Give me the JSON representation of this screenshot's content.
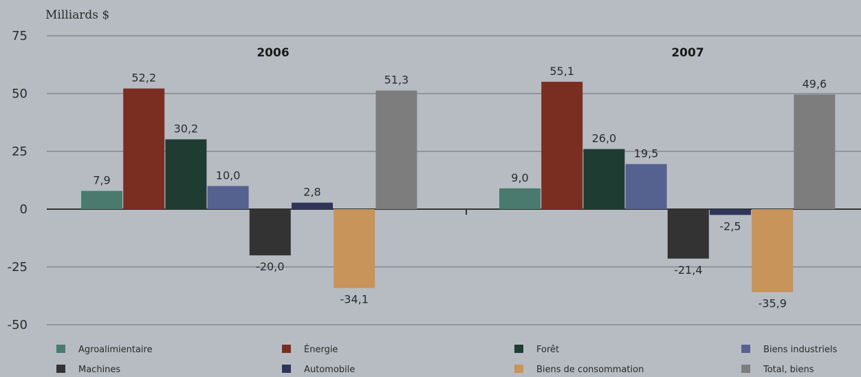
{
  "chart_data": {
    "type": "bar",
    "ylabel": "Milliards $",
    "ylim": [
      -50,
      75
    ],
    "yticks": [
      "75",
      "50",
      "25",
      "0",
      "-25",
      "-50"
    ],
    "ytick_values": [
      75,
      50,
      25,
      0,
      -25,
      -50
    ],
    "grid": true,
    "legend_position": "bottom",
    "groups": [
      "2006",
      "2007"
    ],
    "series": [
      {
        "name": "Agroalimientaire",
        "color": "#4a7a6e",
        "values": [
          7.9,
          9.0
        ],
        "labels": [
          "7,9",
          "9,0"
        ]
      },
      {
        "name": "Énergie",
        "color": "#7a2e22",
        "values": [
          52.2,
          55.1
        ],
        "labels": [
          "52,2",
          "55,1"
        ]
      },
      {
        "name": "Forêt",
        "color": "#1f3c32",
        "values": [
          30.2,
          26.0
        ],
        "labels": [
          "30,2",
          "26,0"
        ]
      },
      {
        "name": "Biens industriels",
        "color": "#55618f",
        "values": [
          10.0,
          19.5
        ],
        "labels": [
          "10,0",
          "19,5"
        ]
      },
      {
        "name": "Machines",
        "color": "#333333",
        "values": [
          -20.0,
          -21.4
        ],
        "labels": [
          "-20,0",
          "-21,4"
        ]
      },
      {
        "name": "Automobile",
        "color": "#2e3558",
        "values": [
          2.8,
          -2.5
        ],
        "labels": [
          "2,8",
          "-2,5"
        ]
      },
      {
        "name": "Biens de consommation",
        "color": "#c8945a",
        "values": [
          -34.1,
          -35.9
        ],
        "labels": [
          "-34,1",
          "-35,9"
        ]
      },
      {
        "name": "Total, biens",
        "color": "#7d7d7d",
        "values": [
          51.3,
          49.6
        ],
        "labels": [
          "51,3",
          "49,6"
        ]
      }
    ],
    "legend_order": [
      0,
      1,
      2,
      3,
      4,
      5,
      6,
      7
    ]
  }
}
